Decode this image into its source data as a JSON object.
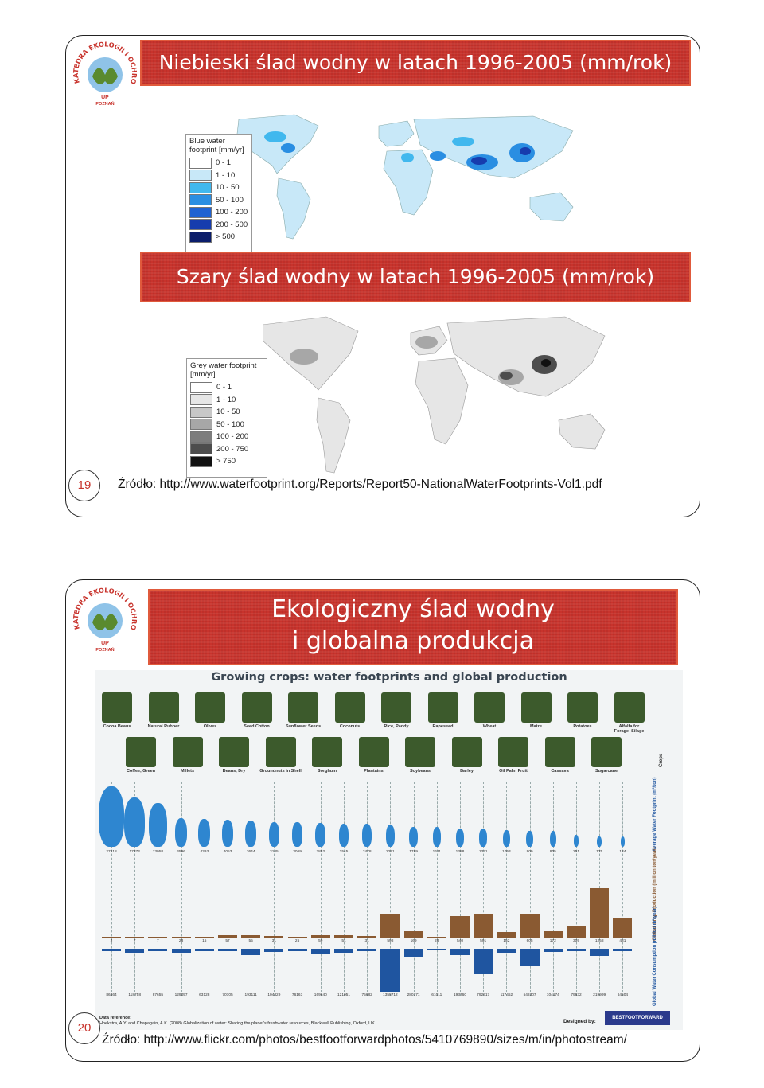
{
  "slide1": {
    "logo": {
      "arc_text": "KATEDRA EKOLOGII I OCHRONY ŚRODOWISKA",
      "center_text": "UP",
      "bottom_text": "POZNAŃ"
    },
    "title": "Niebieski ślad wodny w latach 1996-2005 (mm/rok)",
    "blue_map": {
      "legend_title": "Blue water footprint [mm/yr]",
      "legend_items": [
        {
          "label": "0 - 1",
          "color": "#ffffff"
        },
        {
          "label": "1 - 10",
          "color": "#c8e8f8"
        },
        {
          "label": "10 - 50",
          "color": "#41b8ee"
        },
        {
          "label": "50 - 100",
          "color": "#2a8ee2"
        },
        {
          "label": "100 - 200",
          "color": "#1f62d2"
        },
        {
          "label": "200 - 500",
          "color": "#163cae"
        },
        {
          "label": "> 500",
          "color": "#0b1d6b"
        }
      ]
    },
    "grey_title": "Szary ślad wodny w latach 1996-2005 (mm/rok)",
    "grey_map": {
      "legend_title": "Grey water footprint [mm/yr]",
      "legend_items": [
        {
          "label": "0 - 1",
          "color": "#ffffff"
        },
        {
          "label": "1 - 10",
          "color": "#e6e6e6"
        },
        {
          "label": "10 - 50",
          "color": "#c8c8c8"
        },
        {
          "label": "50 - 100",
          "color": "#a7a7a7"
        },
        {
          "label": "100 - 200",
          "color": "#7d7d7d"
        },
        {
          "label": "200 - 750",
          "color": "#4d4d4d"
        },
        {
          "label": "> 750",
          "color": "#111111"
        }
      ]
    },
    "page_number": "19",
    "source": "Źródło: http://www.waterfootprint.org/Reports/Report50-NationalWaterFootprints-Vol1.pdf"
  },
  "slide2": {
    "logo": {
      "arc_text": "KATEDRA EKOLOGII I OCHRONY ŚRODOWISKA",
      "center_text": "UP",
      "bottom_text": "POZNAŃ"
    },
    "title_line1": "Ekologiczny  ślad wodny",
    "title_line2": "i  globalna  produkcja",
    "infographic": {
      "title": "Growing crops: water footprints and global production",
      "crops_row1": [
        "Cocoa Beans",
        "Natural Rubber",
        "Olives",
        "Seed Cotton",
        "Sunflower Seeds",
        "Coconuts",
        "Rice, Paddy",
        "Rapeseed",
        "Wheat",
        "Maize",
        "Potatoes",
        "Alfalfa for Forage+Silage"
      ],
      "crops_row2": [
        "Coffee, Green",
        "Millets",
        "Beans, Dry",
        "Groundnuts in Shell",
        "Sorghum",
        "Plantains",
        "Soybeans",
        "Barley",
        "Oil Palm Fruit",
        "Cassava",
        "Sugarcane"
      ],
      "crops_side_label": "Crops",
      "footprint_label": "Average Water Footprint (m³/ton)",
      "production_label": "Global Crop Production (million ton/year)",
      "consumption_label": "Global Water Consumption (million m³/year)",
      "footprints": [
        27218,
        17373,
        13058,
        4596,
        4393,
        4053,
        3644,
        3145,
        3069,
        2852,
        2545,
        2478,
        2291,
        1789,
        1611,
        1388,
        1331,
        1053,
        909,
        905,
        251,
        175,
        134
      ],
      "production": [
        3,
        7,
        7,
        28,
        15,
        57,
        55,
        31,
        25,
        59,
        51,
        31,
        598,
        169,
        28,
        540,
        591,
        152,
        605,
        172,
        309,
        1258,
        481
      ],
      "consumption": [
        86464,
        118758,
        87655,
        129057,
        63128,
        70705,
        193111,
        104329,
        76163,
        169640,
        121051,
        75682,
        1358712,
        280371,
        61011,
        193760,
        792917,
        117452,
        548307,
        104174,
        79832,
        219999,
        64504
      ],
      "data_reference_title": "Data reference:",
      "data_reference": "Hoekstra, A.Y. and Chapagain, A.K. (2008) Globalization of water: Sharing the planet's freshwater resources, Blackwell Publishing, Oxford, UK.",
      "designed_by": "Designed by:",
      "designer": "BESTFOOTFORWARD"
    },
    "page_number": "20",
    "source": "Źródło: http://www.flickr.com/photos/bestfootforwardphotos/5410769890/sizes/m/in/photostream/"
  },
  "colors": {
    "banner": "#c8332c",
    "footprint_blue": "#2e86d0",
    "production_brown": "#8a5a32",
    "consumption_blue": "#1f55a0",
    "crop_icon": "#3c5a2c"
  }
}
